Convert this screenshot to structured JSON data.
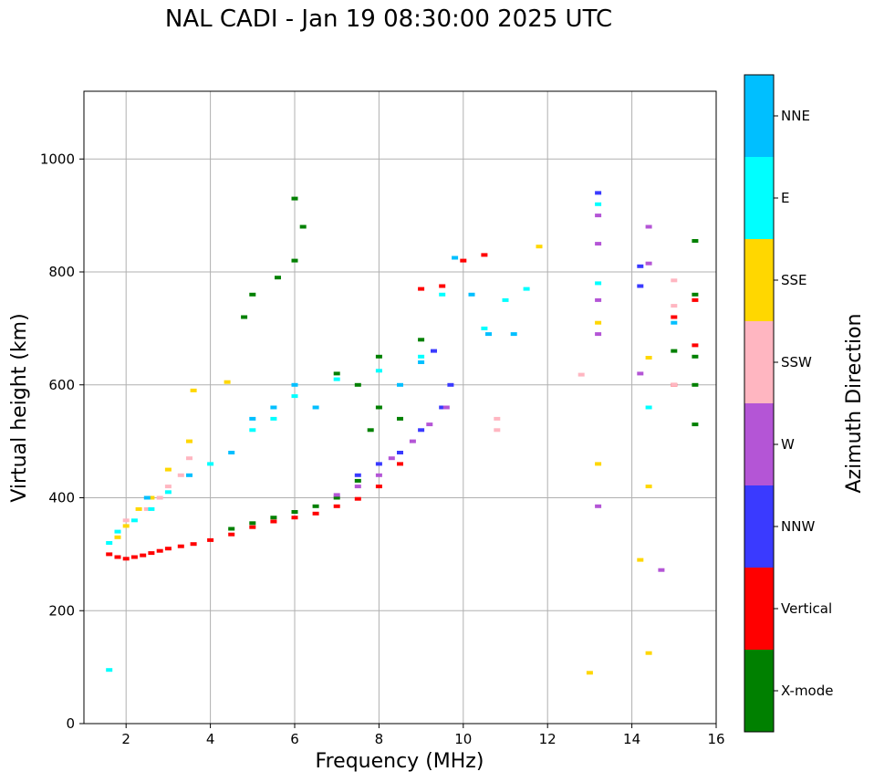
{
  "chart_data": {
    "type": "scatter",
    "title": "NAL CADI - Jan 19 08:30:00 2025 UTC",
    "xlabel": "Frequency (MHz)",
    "ylabel": "Virtual height (km)",
    "xlim": [
      1,
      16
    ],
    "ylim": [
      0,
      1120
    ],
    "xticks": [
      2,
      4,
      6,
      8,
      10,
      12,
      14,
      16
    ],
    "yticks": [
      0,
      200,
      400,
      600,
      800,
      1000
    ],
    "grid": true,
    "colorbar": {
      "label": "Azimuth Direction",
      "categories": [
        {
          "name": "X-mode",
          "color": "#008000"
        },
        {
          "name": "Vertical",
          "color": "#ff0000"
        },
        {
          "name": "NNW",
          "color": "#3a3aff"
        },
        {
          "name": "W",
          "color": "#b455d6"
        },
        {
          "name": "SSW",
          "color": "#ffb6c1"
        },
        {
          "name": "SSE",
          "color": "#ffd700"
        },
        {
          "name": "E",
          "color": "#00ffff"
        },
        {
          "name": "NNE",
          "color": "#00bfff"
        }
      ]
    },
    "series": [
      {
        "name": "Vertical",
        "color": "#ff0000",
        "points": [
          [
            1.6,
            300
          ],
          [
            1.8,
            295
          ],
          [
            2.0,
            292
          ],
          [
            2.2,
            295
          ],
          [
            2.4,
            298
          ],
          [
            2.6,
            302
          ],
          [
            2.8,
            306
          ],
          [
            3.0,
            310
          ],
          [
            3.3,
            314
          ],
          [
            3.6,
            318
          ],
          [
            4.0,
            325
          ],
          [
            4.5,
            335
          ],
          [
            5.0,
            348
          ],
          [
            5.5,
            358
          ],
          [
            6.0,
            365
          ],
          [
            6.5,
            372
          ],
          [
            7.0,
            385
          ],
          [
            7.5,
            398
          ],
          [
            8.0,
            420
          ],
          [
            8.5,
            460
          ],
          [
            9.0,
            770
          ],
          [
            9.5,
            775
          ],
          [
            10.0,
            820
          ],
          [
            10.5,
            830
          ],
          [
            15.0,
            720
          ],
          [
            15.0,
            600
          ],
          [
            15.5,
            750
          ],
          [
            15.5,
            670
          ]
        ]
      },
      {
        "name": "X-mode",
        "color": "#008000",
        "points": [
          [
            4.5,
            345
          ],
          [
            5.0,
            355
          ],
          [
            5.5,
            365
          ],
          [
            6.0,
            375
          ],
          [
            6.5,
            385
          ],
          [
            7.0,
            400
          ],
          [
            7.5,
            430
          ],
          [
            7.8,
            520
          ],
          [
            8.0,
            560
          ],
          [
            6.0,
            930
          ],
          [
            6.2,
            880
          ],
          [
            6.0,
            820
          ],
          [
            5.6,
            790
          ],
          [
            5.0,
            760
          ],
          [
            4.8,
            720
          ],
          [
            7.0,
            620
          ],
          [
            7.5,
            600
          ],
          [
            8.0,
            650
          ],
          [
            8.5,
            540
          ],
          [
            9.0,
            680
          ],
          [
            15.5,
            855
          ],
          [
            15.5,
            760
          ],
          [
            15.5,
            650
          ],
          [
            15.5,
            600
          ],
          [
            15.5,
            530
          ],
          [
            15.0,
            660
          ]
        ]
      },
      {
        "name": "NNW",
        "color": "#3a3aff",
        "points": [
          [
            7.5,
            440
          ],
          [
            8.0,
            460
          ],
          [
            8.5,
            480
          ],
          [
            9.0,
            520
          ],
          [
            9.5,
            560
          ],
          [
            9.7,
            600
          ],
          [
            9.3,
            660
          ],
          [
            13.2,
            940
          ],
          [
            14.2,
            810
          ],
          [
            14.2,
            775
          ]
        ]
      },
      {
        "name": "W",
        "color": "#b455d6",
        "points": [
          [
            7.0,
            405
          ],
          [
            7.5,
            420
          ],
          [
            8.0,
            440
          ],
          [
            8.3,
            470
          ],
          [
            8.8,
            500
          ],
          [
            9.2,
            530
          ],
          [
            9.6,
            560
          ],
          [
            13.2,
            900
          ],
          [
            13.2,
            850
          ],
          [
            13.2,
            750
          ],
          [
            13.2,
            690
          ],
          [
            14.4,
            880
          ],
          [
            14.4,
            815
          ],
          [
            14.2,
            620
          ],
          [
            13.2,
            385
          ],
          [
            14.7,
            272
          ]
        ]
      },
      {
        "name": "SSW",
        "color": "#ffb6c1",
        "points": [
          [
            2.0,
            360
          ],
          [
            2.5,
            380
          ],
          [
            2.8,
            400
          ],
          [
            3.0,
            420
          ],
          [
            3.3,
            440
          ],
          [
            3.5,
            470
          ],
          [
            10.8,
            540
          ],
          [
            10.8,
            520
          ],
          [
            12.8,
            618
          ],
          [
            15.0,
            785
          ],
          [
            15.0,
            740
          ],
          [
            15.0,
            600
          ]
        ]
      },
      {
        "name": "SSE",
        "color": "#ffd700",
        "points": [
          [
            1.8,
            330
          ],
          [
            2.0,
            350
          ],
          [
            2.3,
            380
          ],
          [
            2.6,
            400
          ],
          [
            3.0,
            450
          ],
          [
            3.5,
            500
          ],
          [
            3.6,
            590
          ],
          [
            4.4,
            605
          ],
          [
            11.8,
            845
          ],
          [
            13.2,
            710
          ],
          [
            13.2,
            460
          ],
          [
            14.4,
            648
          ],
          [
            14.4,
            420
          ],
          [
            14.2,
            290
          ],
          [
            14.4,
            125
          ],
          [
            13.0,
            90
          ]
        ]
      },
      {
        "name": "E",
        "color": "#00ffff",
        "points": [
          [
            1.6,
            320
          ],
          [
            1.8,
            340
          ],
          [
            2.2,
            360
          ],
          [
            2.6,
            380
          ],
          [
            3.0,
            410
          ],
          [
            4.0,
            460
          ],
          [
            5.0,
            520
          ],
          [
            5.5,
            540
          ],
          [
            6.0,
            580
          ],
          [
            7.0,
            610
          ],
          [
            8.0,
            625
          ],
          [
            9.0,
            650
          ],
          [
            9.5,
            760
          ],
          [
            10.5,
            700
          ],
          [
            11.0,
            750
          ],
          [
            11.5,
            770
          ],
          [
            13.2,
            780
          ],
          [
            13.2,
            920
          ],
          [
            14.4,
            560
          ],
          [
            1.6,
            95
          ]
        ]
      },
      {
        "name": "NNE",
        "color": "#00bfff",
        "points": [
          [
            2.5,
            400
          ],
          [
            3.5,
            440
          ],
          [
            4.5,
            480
          ],
          [
            5.0,
            540
          ],
          [
            5.5,
            560
          ],
          [
            6.0,
            600
          ],
          [
            6.5,
            560
          ],
          [
            8.5,
            600
          ],
          [
            9.0,
            640
          ],
          [
            9.8,
            825
          ],
          [
            10.2,
            760
          ],
          [
            10.6,
            690
          ],
          [
            11.2,
            690
          ],
          [
            15.0,
            710
          ]
        ]
      }
    ]
  }
}
